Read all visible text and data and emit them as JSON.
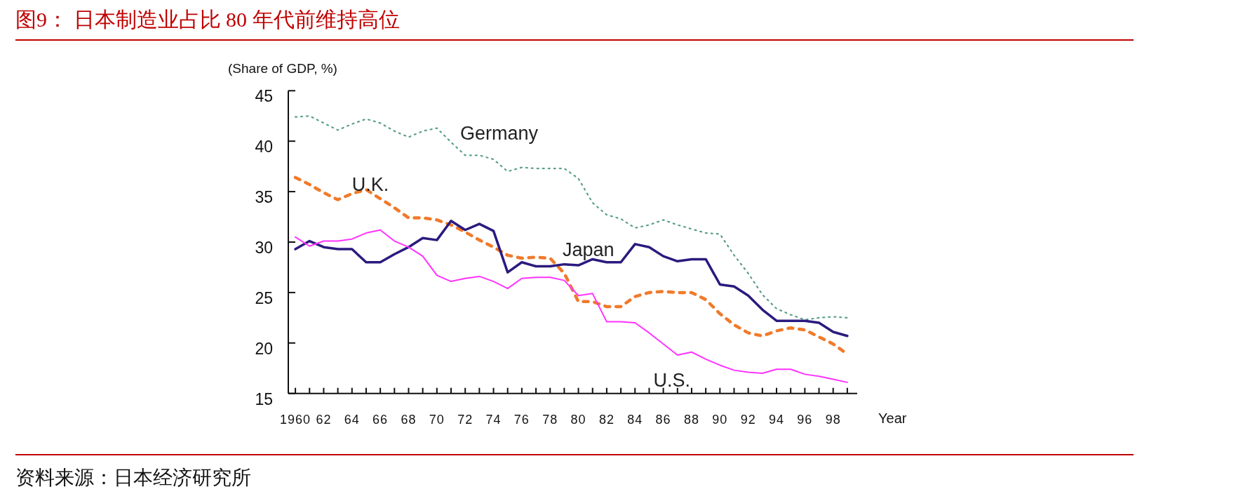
{
  "chart_data": {
    "type": "line",
    "title": "图9：  日本制造业占比 80 年代前维持高位",
    "xlabel": "Year",
    "ylabel": "(Share of GDP, %)",
    "x": [
      1960,
      1961,
      1962,
      1963,
      1964,
      1965,
      1966,
      1967,
      1968,
      1969,
      1970,
      1971,
      1972,
      1973,
      1974,
      1975,
      1976,
      1977,
      1978,
      1979,
      1980,
      1981,
      1982,
      1983,
      1984,
      1985,
      1986,
      1987,
      1988,
      1989,
      1990,
      1991,
      1992,
      1993,
      1994,
      1995,
      1996,
      1997,
      1998,
      1999
    ],
    "xlim": [
      1959.5,
      1999.7
    ],
    "xticks": [
      {
        "value": 1960,
        "label": "1960"
      },
      {
        "value": 1961,
        "label": null
      },
      {
        "value": 1962,
        "label": "62"
      },
      {
        "value": 1963,
        "label": null
      },
      {
        "value": 1964,
        "label": "64"
      },
      {
        "value": 1965,
        "label": null
      },
      {
        "value": 1966,
        "label": "66"
      },
      {
        "value": 1967,
        "label": null
      },
      {
        "value": 1968,
        "label": "68"
      },
      {
        "value": 1969,
        "label": null
      },
      {
        "value": 1970,
        "label": "70"
      },
      {
        "value": 1971,
        "label": null
      },
      {
        "value": 1972,
        "label": "72"
      },
      {
        "value": 1973,
        "label": null
      },
      {
        "value": 1974,
        "label": "74"
      },
      {
        "value": 1975,
        "label": null
      },
      {
        "value": 1976,
        "label": "76"
      },
      {
        "value": 1977,
        "label": null
      },
      {
        "value": 1978,
        "label": "78"
      },
      {
        "value": 1979,
        "label": null
      },
      {
        "value": 1980,
        "label": "80"
      },
      {
        "value": 1981,
        "label": null
      },
      {
        "value": 1982,
        "label": "82"
      },
      {
        "value": 1983,
        "label": null
      },
      {
        "value": 1984,
        "label": "84"
      },
      {
        "value": 1985,
        "label": null
      },
      {
        "value": 1986,
        "label": "86"
      },
      {
        "value": 1987,
        "label": null
      },
      {
        "value": 1988,
        "label": "88"
      },
      {
        "value": 1989,
        "label": null
      },
      {
        "value": 1990,
        "label": "90"
      },
      {
        "value": 1991,
        "label": null
      },
      {
        "value": 1992,
        "label": "92"
      },
      {
        "value": 1993,
        "label": null
      },
      {
        "value": 1994,
        "label": "94"
      },
      {
        "value": 1995,
        "label": null
      },
      {
        "value": 1996,
        "label": "96"
      },
      {
        "value": 1997,
        "label": null
      },
      {
        "value": 1998,
        "label": "98"
      },
      {
        "value": 1999,
        "label": null
      }
    ],
    "ylim": [
      15,
      45
    ],
    "yticks": [
      15,
      20,
      25,
      30,
      35,
      40,
      45
    ],
    "series": [
      {
        "name": "Germany",
        "color": "#5a9e8c",
        "line_style": "dotted",
        "values": [
          42.4,
          42.5,
          41.8,
          41.1,
          41.7,
          42.2,
          41.8,
          41.0,
          40.4,
          41.0,
          41.3,
          39.9,
          38.6,
          38.6,
          38.2,
          37.0,
          37.4,
          37.3,
          37.3,
          37.3,
          36.3,
          33.9,
          32.7,
          32.3,
          31.4,
          31.7,
          32.2,
          31.7,
          31.3,
          30.9,
          30.8,
          28.7,
          26.9,
          24.8,
          23.4,
          22.8,
          22.3,
          22.5,
          22.6,
          22.5
        ]
      },
      {
        "name": "U.K.",
        "color": "#f07a2a",
        "line_style": "dashed",
        "values": [
          36.4,
          35.7,
          34.9,
          34.2,
          34.8,
          35.2,
          34.3,
          33.4,
          32.4,
          32.4,
          32.2,
          31.7,
          31.0,
          30.2,
          29.5,
          28.7,
          28.4,
          28.5,
          28.4,
          26.9,
          24.1,
          24.1,
          23.6,
          23.6,
          24.6,
          25.0,
          25.1,
          25.0,
          25.0,
          24.3,
          22.9,
          21.8,
          21.0,
          20.7,
          21.2,
          21.5,
          21.3,
          20.6,
          19.9,
          18.9
        ]
      },
      {
        "name": "Japan",
        "color": "#2b1a7e",
        "line_style": "solid",
        "values": [
          29.3,
          30.1,
          29.5,
          29.3,
          29.3,
          28.0,
          28.0,
          28.8,
          29.5,
          30.4,
          30.2,
          32.1,
          31.2,
          31.8,
          31.1,
          27.0,
          28.0,
          27.6,
          27.6,
          27.8,
          27.7,
          28.3,
          28.0,
          28.0,
          29.8,
          29.5,
          28.6,
          28.1,
          28.3,
          28.3,
          25.8,
          25.6,
          24.7,
          23.3,
          22.2,
          22.2,
          22.2,
          22.0,
          21.1,
          20.7
        ]
      },
      {
        "name": "U.S.",
        "color": "#ff33ff",
        "line_style": "solid",
        "values": [
          30.5,
          29.6,
          30.1,
          30.1,
          30.3,
          30.9,
          31.2,
          30.1,
          29.5,
          28.6,
          26.7,
          26.1,
          26.4,
          26.6,
          26.1,
          25.4,
          26.4,
          26.5,
          26.5,
          26.2,
          24.7,
          24.9,
          22.1,
          22.1,
          22.0,
          21.0,
          19.9,
          18.8,
          19.1,
          18.4,
          17.8,
          17.3,
          17.1,
          17.0,
          17.4,
          17.4,
          16.9,
          16.7,
          16.4,
          16.1
        ]
      }
    ],
    "annotations": [
      "资料来源：日本经济研究所"
    ]
  }
}
